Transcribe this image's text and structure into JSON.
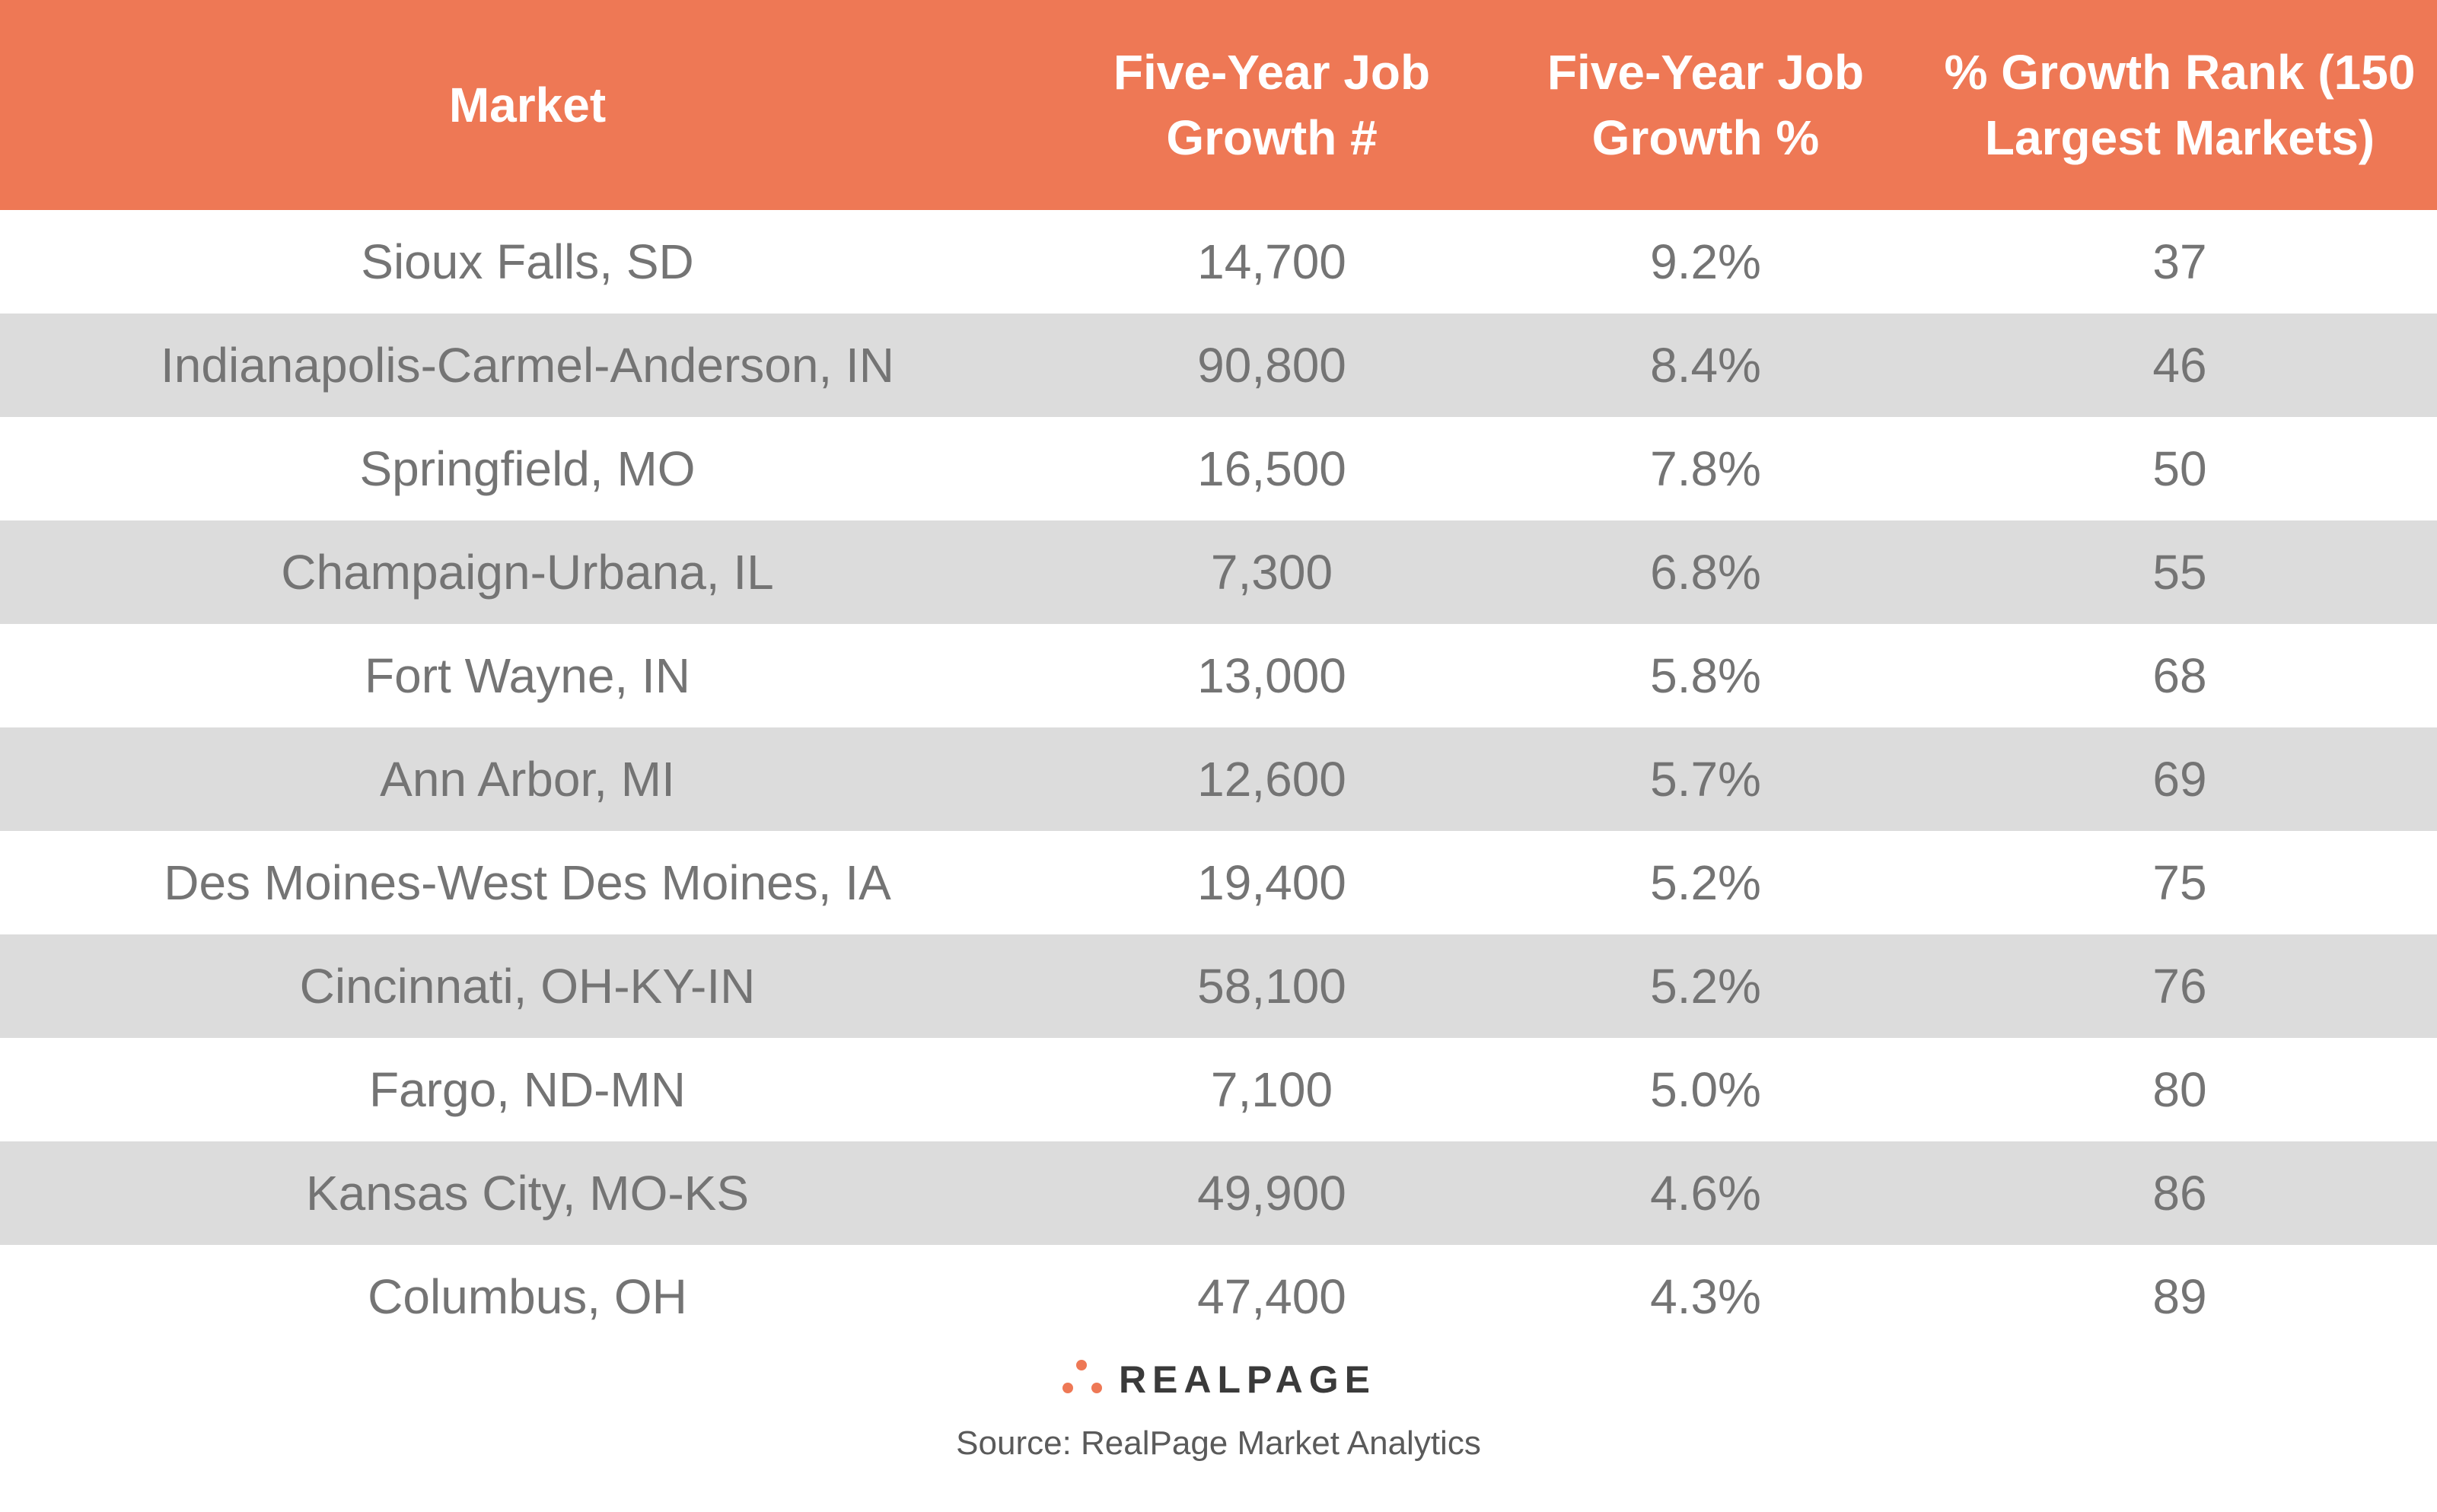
{
  "colors": {
    "header_bg": "#ee7855",
    "header_text": "#ffffff",
    "row_shade": "#dcdcdc",
    "row_plain": "#ffffff",
    "body_text": "#747474",
    "brand_accent": "#ee7855"
  },
  "chart_data": {
    "type": "table",
    "columns": [
      "Market",
      "Five-Year Job\nGrowth #",
      "Five-Year Job\nGrowth %",
      "% Growth Rank (150\nLargest Markets)"
    ],
    "rows": [
      [
        "Sioux Falls, SD",
        "14,700",
        "9.2%",
        "37"
      ],
      [
        "Indianapolis-Carmel-Anderson, IN",
        "90,800",
        "8.4%",
        "46"
      ],
      [
        "Springfield, MO",
        "16,500",
        "7.8%",
        "50"
      ],
      [
        "Champaign-Urbana, IL",
        "7,300",
        "6.8%",
        "55"
      ],
      [
        "Fort Wayne, IN",
        "13,000",
        "5.8%",
        "68"
      ],
      [
        "Ann Arbor, MI",
        "12,600",
        "5.7%",
        "69"
      ],
      [
        "Des Moines-West Des Moines, IA",
        "19,400",
        "5.2%",
        "75"
      ],
      [
        "Cincinnati, OH-KY-IN",
        "58,100",
        "5.2%",
        "76"
      ],
      [
        "Fargo, ND-MN",
        "7,100",
        "5.0%",
        "80"
      ],
      [
        "Kansas City, MO-KS",
        "49,900",
        "4.6%",
        "86"
      ],
      [
        "Columbus, OH",
        "47,400",
        "4.3%",
        "89"
      ]
    ]
  },
  "footer": {
    "logo_text": "REALPAGE",
    "logo_icon": "realpage-dots-logo-icon",
    "source": "Source: RealPage Market Analytics"
  }
}
